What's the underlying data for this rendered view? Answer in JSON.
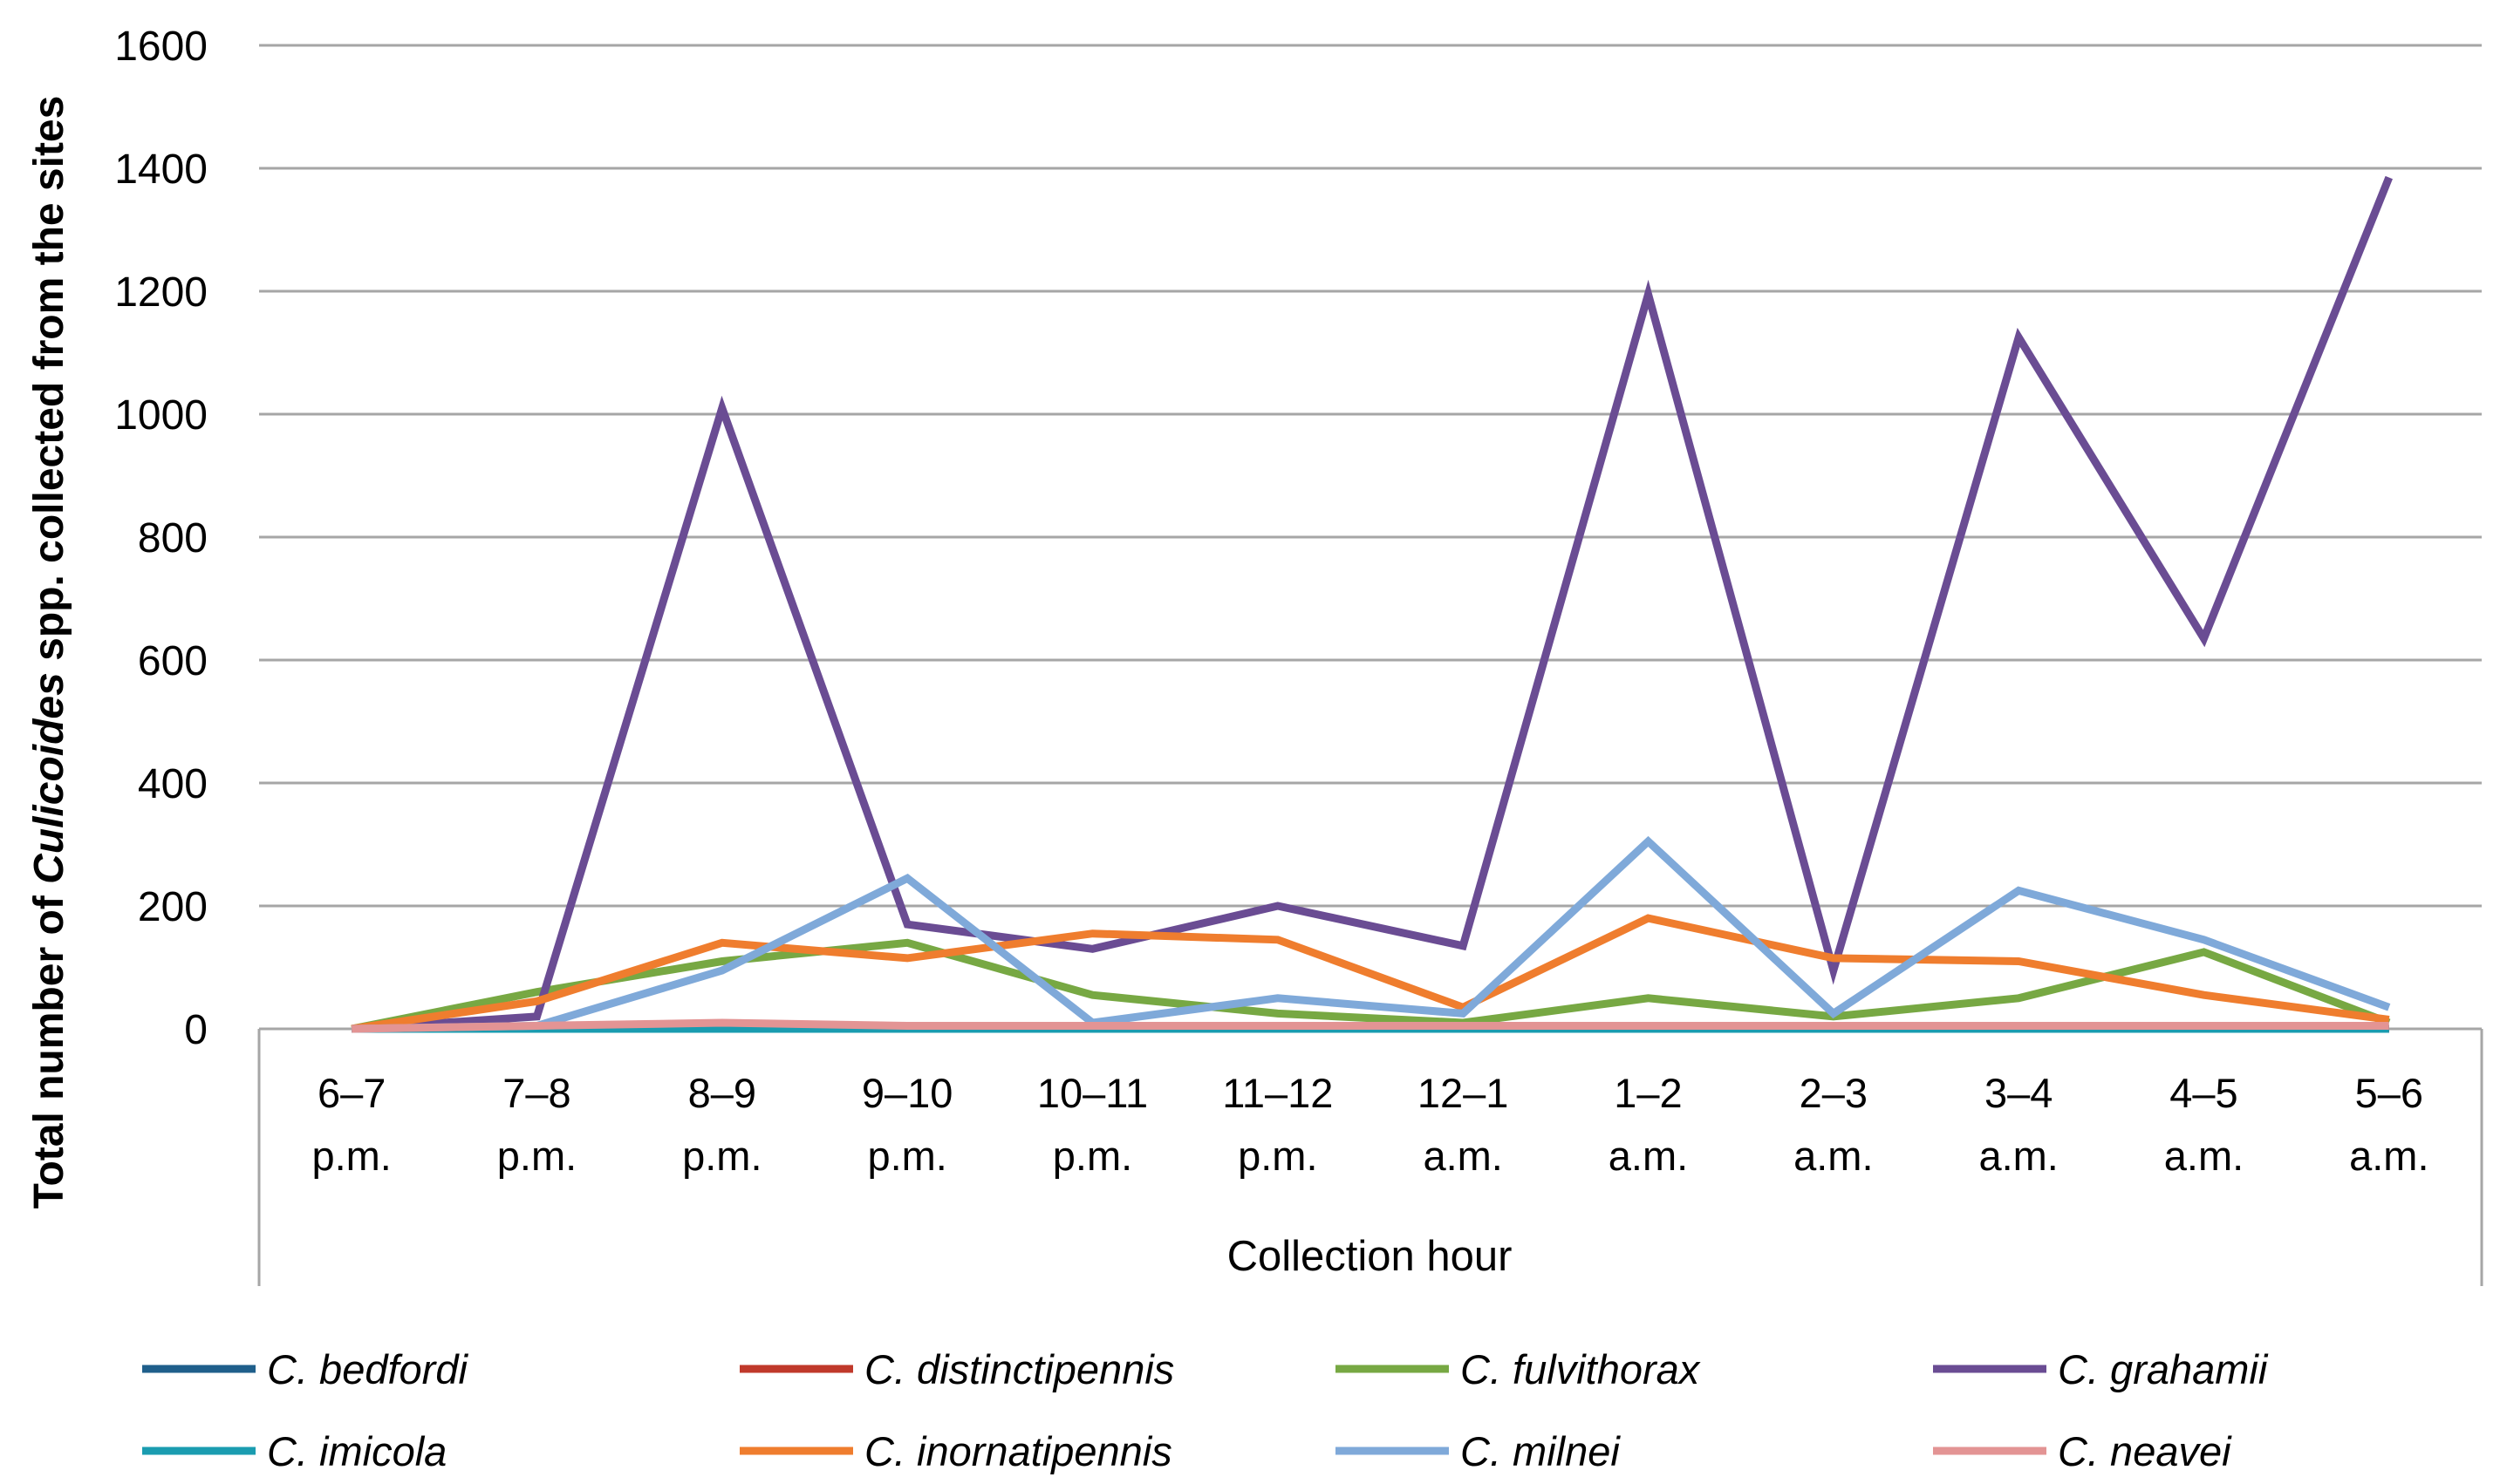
{
  "chart_data": {
    "type": "line",
    "title": "",
    "xlabel": "Collection hour",
    "ylabel": {
      "prefix": "Total number of ",
      "italic": "Culicoides",
      "suffix": " spp. collected from the sites"
    },
    "ylim": [
      0,
      1600
    ],
    "yticks": [
      "0",
      "200",
      "400",
      "600",
      "800",
      "1000",
      "1200",
      "1400",
      "1600"
    ],
    "categories": [
      [
        "6–7",
        "p.m."
      ],
      [
        "7–8",
        "p.m."
      ],
      [
        "8–9",
        "p.m."
      ],
      [
        "9–10",
        "p.m."
      ],
      [
        "10–11",
        "p.m."
      ],
      [
        "11–12",
        "p.m."
      ],
      [
        "12–1",
        "a.m."
      ],
      [
        "1–2",
        "a.m."
      ],
      [
        "2–3",
        "a.m."
      ],
      [
        "3–4",
        "a.m."
      ],
      [
        "4–5",
        "a.m."
      ],
      [
        "5–6",
        "a.m."
      ]
    ],
    "grid": true,
    "legend_position": "bottom",
    "series": [
      {
        "name": "C. bedfordi",
        "color": "#1f5f8b",
        "values": [
          0,
          0,
          0,
          0,
          0,
          0,
          0,
          0,
          0,
          0,
          0,
          0
        ]
      },
      {
        "name": "C. distinctipennis",
        "color": "#c0392b",
        "values": [
          0,
          0,
          0,
          0,
          0,
          0,
          0,
          0,
          0,
          0,
          0,
          0
        ]
      },
      {
        "name": "C. fulvithorax",
        "color": "#77a843",
        "values": [
          0,
          60,
          110,
          140,
          55,
          25,
          10,
          50,
          20,
          50,
          125,
          10
        ]
      },
      {
        "name": "C. grahamii",
        "color": "#6a4c93",
        "values": [
          0,
          20,
          1010,
          170,
          130,
          200,
          135,
          1195,
          95,
          1125,
          635,
          1385
        ]
      },
      {
        "name": "C. imicola",
        "color": "#1a9cb0",
        "values": [
          0,
          0,
          0,
          0,
          0,
          0,
          0,
          0,
          0,
          0,
          0,
          0
        ]
      },
      {
        "name": "C. inornatipennis",
        "color": "#ef7d2e",
        "values": [
          0,
          45,
          140,
          115,
          155,
          145,
          35,
          180,
          115,
          110,
          55,
          15
        ]
      },
      {
        "name": "C. milnei",
        "color": "#7fa9d9",
        "values": [
          0,
          5,
          95,
          245,
          10,
          50,
          25,
          305,
          25,
          225,
          145,
          35
        ]
      },
      {
        "name": "C. neavei",
        "color": "#e39494",
        "values": [
          0,
          5,
          10,
          5,
          5,
          5,
          5,
          5,
          5,
          5,
          5,
          5
        ]
      }
    ]
  }
}
